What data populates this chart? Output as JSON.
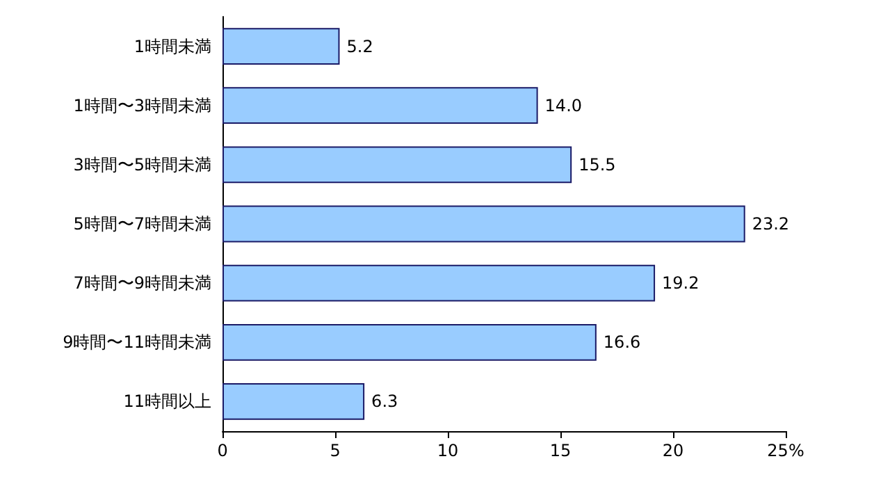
{
  "chart_data": {
    "type": "bar",
    "orientation": "horizontal",
    "categories": [
      "1時間未満",
      "1時間〜3時間未満",
      "3時間〜5時間未満",
      "5時間〜7時間未満",
      "7時間〜9時間未満",
      "9時間〜11時間未満",
      "11時間以上"
    ],
    "values": [
      5.2,
      14.0,
      15.5,
      23.2,
      19.2,
      16.6,
      6.3
    ],
    "value_labels": [
      "5.2",
      "14.0",
      "15.5",
      "23.2",
      "19.2",
      "16.6",
      "6.3"
    ],
    "color": "#99ccff",
    "xlim": [
      0,
      25
    ],
    "xticks": [
      0,
      5,
      10,
      15,
      20,
      {
        "value": 25,
        "label": "25%"
      }
    ],
    "grid": false
  }
}
